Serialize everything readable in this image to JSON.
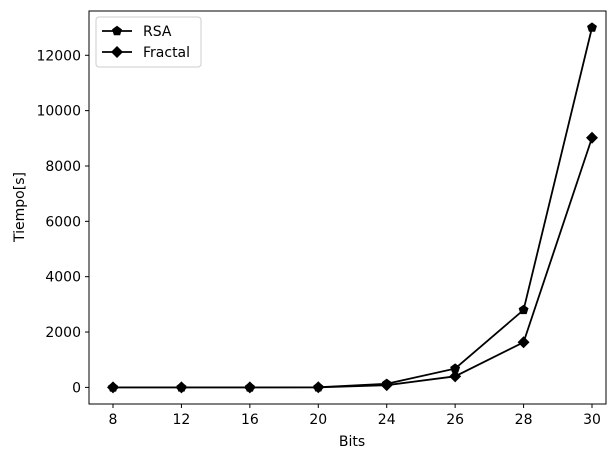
{
  "chart_data": {
    "type": "line",
    "x": [
      "8",
      "12",
      "16",
      "20",
      "24",
      "26",
      "28",
      "30"
    ],
    "xlabel": "Bits",
    "ylabel": "Tiempo[s]",
    "ylim": [
      -600,
      13600
    ],
    "yticks": [
      0,
      2000,
      4000,
      6000,
      8000,
      10000,
      12000
    ],
    "grid": false,
    "legend_position": "top-left",
    "series": [
      {
        "name": "RSA",
        "marker": "pentagon",
        "color": "#000000",
        "values": [
          0,
          0,
          0,
          5,
          130,
          680,
          2800,
          13000
        ]
      },
      {
        "name": "Fractal",
        "marker": "diamond",
        "color": "#000000",
        "values": [
          0,
          0,
          0,
          3,
          80,
          400,
          1630,
          9020
        ]
      }
    ]
  }
}
